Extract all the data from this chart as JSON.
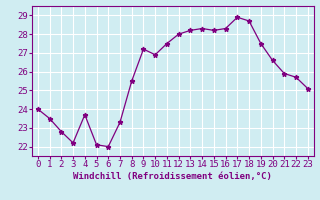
{
  "x": [
    0,
    1,
    2,
    3,
    4,
    5,
    6,
    7,
    8,
    9,
    10,
    11,
    12,
    13,
    14,
    15,
    16,
    17,
    18,
    19,
    20,
    21,
    22,
    23
  ],
  "y": [
    24.0,
    23.5,
    22.8,
    22.2,
    23.7,
    22.1,
    22.0,
    23.3,
    25.5,
    27.2,
    26.9,
    27.5,
    28.0,
    28.2,
    28.3,
    28.2,
    28.3,
    28.9,
    28.7,
    27.5,
    26.6,
    25.9,
    25.7,
    25.1
  ],
  "line_color": "#800080",
  "marker": "*",
  "xlabel": "Windchill (Refroidissement éolien,°C)",
  "ylim": [
    21.5,
    29.5
  ],
  "xlim": [
    -0.5,
    23.5
  ],
  "yticks": [
    22,
    23,
    24,
    25,
    26,
    27,
    28,
    29
  ],
  "xticks": [
    0,
    1,
    2,
    3,
    4,
    5,
    6,
    7,
    8,
    9,
    10,
    11,
    12,
    13,
    14,
    15,
    16,
    17,
    18,
    19,
    20,
    21,
    22,
    23
  ],
  "bg_color": "#d0edf2",
  "grid_color": "#ffffff",
  "tick_color": "#800080",
  "label_color": "#800080",
  "font_size_xlabel": 6.5,
  "font_size_ticks": 6.5
}
